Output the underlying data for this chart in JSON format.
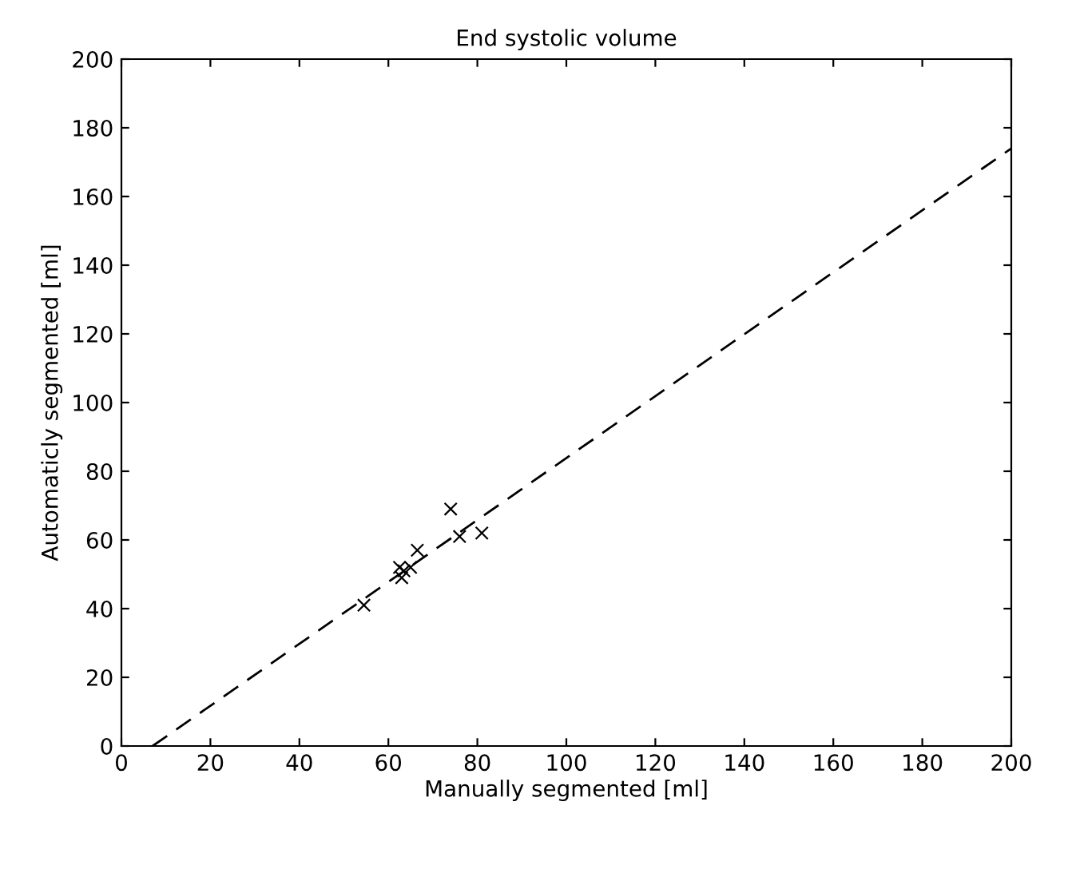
{
  "chart_data": {
    "type": "scatter",
    "title": "End systolic volume",
    "xlabel": "Manually segmented [ml]",
    "ylabel": "Automaticly segmented [ml]",
    "series": [
      {
        "color": "#000000",
        "marker": "cross",
        "x": [
          54.5,
          62.5,
          63,
          63.5,
          65,
          66.5,
          74,
          76,
          81
        ],
        "values": [
          41,
          52,
          49,
          51,
          52,
          57,
          69,
          61,
          62
        ]
      },
      {
        "type": "line",
        "color": "#000000",
        "line_style": "dashed",
        "marker": "none",
        "x": [
          7,
          200
        ],
        "values": [
          0,
          174
        ]
      }
    ],
    "xlim": [
      0,
      200
    ],
    "ylim": [
      0,
      200
    ],
    "xticks": [
      0,
      20,
      40,
      60,
      80,
      100,
      120,
      140,
      160,
      180,
      200
    ],
    "yticks": [
      0,
      20,
      40,
      60,
      80,
      100,
      120,
      140,
      160,
      180,
      200
    ],
    "grid": false,
    "legend": false
  }
}
